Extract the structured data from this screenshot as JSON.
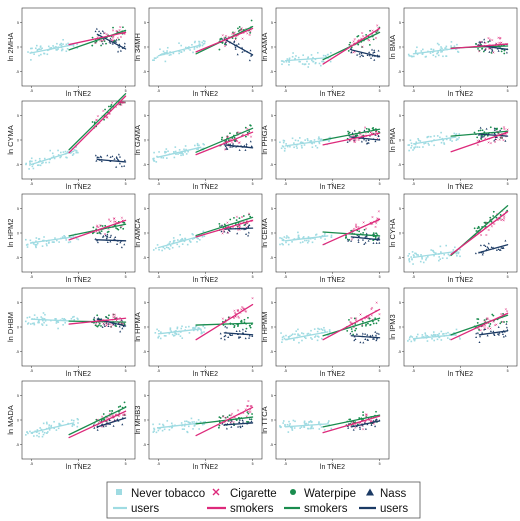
{
  "chart_data": {
    "type": "scatter",
    "panel_xlabel": "ln TNE2",
    "panels": [
      {
        "ylabel": "ln 2MHA",
        "xlim": [
          -6,
          6
        ],
        "yticks": [
          "-5",
          "0",
          "5"
        ],
        "lines": {
          "never": [
            [
              -5,
              -1.2
            ],
            [
              -0.5,
              0.5
            ]
          ],
          "cig": [
            [
              -1,
              0.5
            ],
            [
              5,
              3.0
            ]
          ],
          "wp": [
            [
              -1,
              -0.6
            ],
            [
              5,
              3.4
            ]
          ],
          "nass": [
            [
              2,
              2.6
            ],
            [
              5,
              -0.4
            ]
          ]
        }
      },
      {
        "ylabel": "ln 34MH",
        "xlim": [
          -6,
          6
        ],
        "yticks": [
          "-5",
          "0",
          "5"
        ],
        "lines": {
          "never": [
            [
              -5,
              -1.8
            ],
            [
              -0.5,
              0.4
            ]
          ],
          "cig": [
            [
              -1,
              -1.0
            ],
            [
              5,
              3.8
            ]
          ],
          "wp": [
            [
              -1,
              -1.4
            ],
            [
              5,
              4.2
            ]
          ],
          "nass": [
            [
              2,
              1.6
            ],
            [
              5,
              -1.6
            ]
          ]
        }
      },
      {
        "ylabel": "ln AAMA",
        "xlim": [
          -6,
          6
        ],
        "yticks": [
          "-5",
          "0",
          "5"
        ],
        "lines": {
          "never": [
            [
              -5,
              -2.8
            ],
            [
              -0.5,
              -2.2
            ]
          ],
          "cig": [
            [
              -1,
              -3.5
            ],
            [
              5,
              3.8
            ]
          ],
          "wp": [
            [
              -1,
              -2.6
            ],
            [
              5,
              3.0
            ]
          ],
          "nass": [
            [
              2,
              -0.6
            ],
            [
              5,
              -2.0
            ]
          ]
        }
      },
      {
        "ylabel": "ln BMA",
        "xlim": [
          -6,
          6
        ],
        "yticks": [
          "-5",
          "0",
          "5"
        ],
        "lines": {
          "never": [
            [
              -5,
              -1.4
            ],
            [
              -0.5,
              -0.3
            ]
          ],
          "cig": [
            [
              -1,
              -0.3
            ],
            [
              5,
              0.6
            ]
          ],
          "wp": [
            [
              -1,
              -0.2
            ],
            [
              5,
              0.2
            ]
          ],
          "nass": [
            [
              2,
              0.3
            ],
            [
              5,
              -0.5
            ]
          ]
        }
      },
      {
        "ylabel": "ln CYMA",
        "xlim": [
          -6,
          6
        ],
        "yticks": [
          "-5",
          "0",
          "5",
          "10"
        ],
        "lines": {
          "never": [
            [
              -5,
              -5.0
            ],
            [
              -0.5,
              -2.3
            ]
          ],
          "cig": [
            [
              -1,
              -2.6
            ],
            [
              5,
              9.0
            ]
          ],
          "wp": [
            [
              -1,
              -2.0
            ],
            [
              5,
              9.5
            ]
          ],
          "nass": [
            [
              2,
              -4.0
            ],
            [
              5,
              -4.5
            ]
          ]
        }
      },
      {
        "ylabel": "ln GAMA",
        "xlim": [
          -6,
          6
        ],
        "yticks": [
          "-5",
          "0",
          "5"
        ],
        "lines": {
          "never": [
            [
              -5,
              -3.5
            ],
            [
              -0.5,
              -1.5
            ]
          ],
          "cig": [
            [
              -1,
              -3.0
            ],
            [
              5,
              1.6
            ]
          ],
          "wp": [
            [
              -1,
              -2.5
            ],
            [
              5,
              2.4
            ]
          ],
          "nass": [
            [
              2,
              -1.0
            ],
            [
              5,
              -1.6
            ]
          ]
        }
      },
      {
        "ylabel": "ln PHGA",
        "xlim": [
          -6,
          6
        ],
        "yticks": [
          "-5",
          "0",
          "5"
        ],
        "lines": {
          "never": [
            [
              -5,
              -1.2
            ],
            [
              -0.5,
              0.0
            ]
          ],
          "cig": [
            [
              -1,
              -1.0
            ],
            [
              5,
              1.4
            ]
          ],
          "wp": [
            [
              -1,
              0.0
            ],
            [
              5,
              2.2
            ]
          ],
          "nass": [
            [
              2,
              0.6
            ],
            [
              5,
              0.0
            ]
          ]
        }
      },
      {
        "ylabel": "ln PMA",
        "xlim": [
          -6,
          6
        ],
        "yticks": [
          "-5",
          "0",
          "5"
        ],
        "lines": {
          "never": [
            [
              -5,
              -0.8
            ],
            [
              -0.5,
              0.6
            ]
          ],
          "cig": [
            [
              -1,
              -2.4
            ],
            [
              5,
              1.6
            ]
          ],
          "wp": [
            [
              -1,
              0.8
            ],
            [
              5,
              1.8
            ]
          ],
          "nass": [
            [
              2,
              1.2
            ],
            [
              5,
              0.8
            ]
          ]
        }
      },
      {
        "ylabel": "ln HPM2",
        "xlim": [
          -6,
          6
        ],
        "yticks": [
          "-5",
          "0",
          "5"
        ],
        "lines": {
          "never": [
            [
              -5,
              -2.0
            ],
            [
              -0.5,
              -0.8
            ]
          ],
          "cig": [
            [
              -1,
              -1.4
            ],
            [
              5,
              2.6
            ]
          ],
          "wp": [
            [
              -1,
              -0.6
            ],
            [
              5,
              1.8
            ]
          ],
          "nass": [
            [
              2,
              -1.4
            ],
            [
              5,
              -1.6
            ]
          ]
        }
      },
      {
        "ylabel": "ln AMCA",
        "xlim": [
          -6,
          6
        ],
        "yticks": [
          "-5",
          "0",
          "5"
        ],
        "lines": {
          "never": [
            [
              -5,
              -3.0
            ],
            [
              -0.5,
              -0.6
            ]
          ],
          "cig": [
            [
              -1,
              -0.8
            ],
            [
              5,
              2.6
            ]
          ],
          "wp": [
            [
              -1,
              -0.5
            ],
            [
              5,
              3.2
            ]
          ],
          "nass": [
            [
              2,
              0.8
            ],
            [
              5,
              1.0
            ]
          ]
        }
      },
      {
        "ylabel": "ln CEMA",
        "xlim": [
          -6,
          6
        ],
        "yticks": [
          "-5",
          "0",
          "5"
        ],
        "lines": {
          "never": [
            [
              -5,
              -1.6
            ],
            [
              -0.5,
              -0.6
            ]
          ],
          "cig": [
            [
              -1,
              -2.4
            ],
            [
              5,
              2.8
            ]
          ],
          "wp": [
            [
              -1,
              0.2
            ],
            [
              5,
              -0.6
            ]
          ],
          "nass": [
            [
              2,
              -0.8
            ],
            [
              5,
              -1.4
            ]
          ]
        }
      },
      {
        "ylabel": "ln CYHA",
        "xlim": [
          -6,
          6
        ],
        "yticks": [
          "-5",
          "0",
          "5"
        ],
        "lines": {
          "never": [
            [
              -5,
              -5.0
            ],
            [
              -0.5,
              -3.8
            ]
          ],
          "cig": [
            [
              -1,
              -4.4
            ],
            [
              5,
              4.4
            ]
          ],
          "wp": [
            [
              -1,
              -4.6
            ],
            [
              5,
              5.6
            ]
          ],
          "nass": [
            [
              2,
              -4.0
            ],
            [
              5,
              -2.4
            ]
          ]
        }
      },
      {
        "ylabel": "ln DHBM",
        "xlim": [
          -6,
          6
        ],
        "yticks": [
          "-5",
          "0",
          "5"
        ],
        "lines": {
          "never": [
            [
              -5,
              1.6
            ],
            [
              -0.5,
              1.2
            ]
          ],
          "cig": [
            [
              -1,
              0.6
            ],
            [
              5,
              1.8
            ]
          ],
          "wp": [
            [
              -1,
              1.2
            ],
            [
              5,
              1.0
            ]
          ],
          "nass": [
            [
              2,
              1.6
            ],
            [
              5,
              0.2
            ]
          ]
        }
      },
      {
        "ylabel": "ln HPMA",
        "xlim": [
          -6,
          6
        ],
        "yticks": [
          "-5",
          "0",
          "5"
        ],
        "lines": {
          "never": [
            [
              -5,
              -1.4
            ],
            [
              -0.5,
              -0.4
            ]
          ],
          "cig": [
            [
              -1,
              -2.6
            ],
            [
              5,
              4.6
            ]
          ],
          "wp": [
            [
              -1,
              0.4
            ],
            [
              5,
              0.8
            ]
          ],
          "nass": [
            [
              2,
              -1.2
            ],
            [
              5,
              -1.6
            ]
          ]
        }
      },
      {
        "ylabel": "ln HPMM",
        "xlim": [
          -6,
          6
        ],
        "yticks": [
          "-5",
          "0",
          "5"
        ],
        "lines": {
          "never": [
            [
              -5,
              -2.6
            ],
            [
              -0.5,
              -1.0
            ]
          ],
          "cig": [
            [
              -1,
              -2.6
            ],
            [
              5,
              3.6
            ]
          ],
          "wp": [
            [
              -1,
              -1.8
            ],
            [
              5,
              1.8
            ]
          ],
          "nass": [
            [
              2,
              -1.8
            ],
            [
              5,
              -2.2
            ]
          ]
        }
      },
      {
        "ylabel": "ln IPM3",
        "xlim": [
          -6,
          6
        ],
        "yticks": [
          "-5",
          "0",
          "5"
        ],
        "lines": {
          "never": [
            [
              -5,
              -2.4
            ],
            [
              -0.5,
              -1.6
            ]
          ],
          "cig": [
            [
              -1,
              -2.6
            ],
            [
              5,
              2.8
            ]
          ],
          "wp": [
            [
              -1,
              -1.6
            ],
            [
              5,
              2.4
            ]
          ],
          "nass": [
            [
              2,
              -1.6
            ],
            [
              5,
              -0.8
            ]
          ]
        }
      },
      {
        "ylabel": "ln MADA",
        "xlim": [
          -6,
          6
        ],
        "yticks": [
          "-5",
          "0",
          "5"
        ],
        "lines": {
          "never": [
            [
              -5,
              -2.6
            ],
            [
              -0.5,
              -0.6
            ]
          ],
          "cig": [
            [
              -1,
              -3.6
            ],
            [
              5,
              1.8
            ]
          ],
          "wp": [
            [
              -1,
              -3.0
            ],
            [
              5,
              2.6
            ]
          ],
          "nass": [
            [
              2,
              -1.4
            ],
            [
              5,
              0.4
            ]
          ]
        }
      },
      {
        "ylabel": "ln MHB3",
        "xlim": [
          -6,
          6
        ],
        "yticks": [
          "-5",
          "0",
          "5"
        ],
        "lines": {
          "never": [
            [
              -5,
              -1.6
            ],
            [
              -0.5,
              -0.6
            ]
          ],
          "cig": [
            [
              -1,
              -3.2
            ],
            [
              5,
              2.6
            ]
          ],
          "wp": [
            [
              -1,
              -0.8
            ],
            [
              5,
              0.6
            ]
          ],
          "nass": [
            [
              2,
              -1.0
            ],
            [
              5,
              -0.6
            ]
          ]
        }
      },
      {
        "ylabel": "ln TTCA",
        "xlim": [
          -6,
          6
        ],
        "yticks": [
          "-5",
          "0",
          "5"
        ],
        "lines": {
          "never": [
            [
              -5,
              -1.4
            ],
            [
              -0.5,
              -0.8
            ]
          ],
          "cig": [
            [
              -1,
              -2.6
            ],
            [
              5,
              0.8
            ]
          ],
          "wp": [
            [
              -1,
              -1.4
            ],
            [
              5,
              1.0
            ]
          ],
          "nass": [
            [
              2,
              -1.4
            ],
            [
              5,
              -0.2
            ]
          ]
        }
      }
    ],
    "legend": {
      "placement": "bottom",
      "entries": [
        {
          "key": "never",
          "line1": "Never tobacco",
          "line2": "users"
        },
        {
          "key": "cig",
          "line1": "Cigarette",
          "line2": "smokers"
        },
        {
          "key": "wp",
          "line1": "Waterpipe",
          "line2": "smokers"
        },
        {
          "key": "nass",
          "line1": "Nass",
          "line2": "users"
        }
      ]
    },
    "colors": {
      "never": "#9fdbe2",
      "cig": "#dd2a7b",
      "wp": "#1a8c4e",
      "nass": "#1b3a64"
    }
  }
}
